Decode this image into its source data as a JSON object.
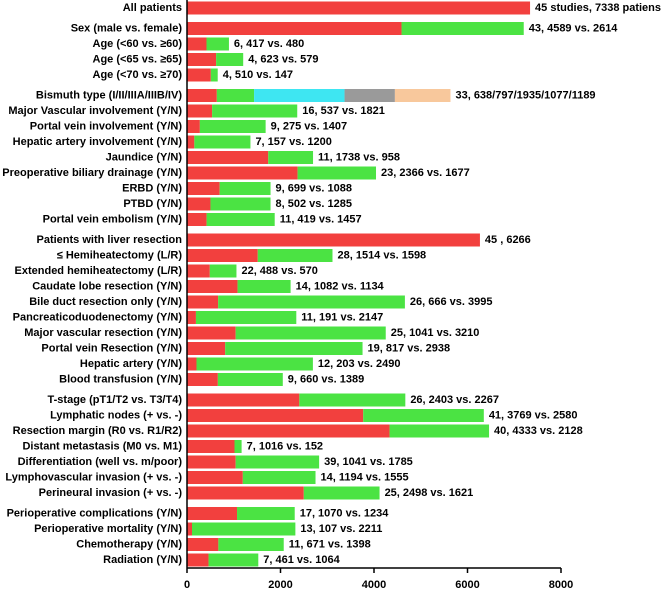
{
  "chart_data": {
    "type": "bar",
    "orientation": "horizontal",
    "stacked": true,
    "categories": [
      "All patients",
      "Sex (male vs. female)",
      "Age (<60 vs. ≥60)",
      "Age (<65 vs. ≥65)",
      "Age (<70 vs. ≥70)",
      "Bismuth type (I/II/IIIA/IIIB/IV)",
      "Major Vascular involvement (Y/N)",
      "Portal vein involvement (Y/N)",
      "Hepatic artery involvement (Y/N)",
      "Jaundice (Y/N)",
      "Preoperative biliary drainage (Y/N)",
      "ERBD (Y/N)",
      "PTBD (Y/N)",
      "Portal vein embolism (Y/N)",
      "Patients with liver resection",
      "≤ Hemiheatectomy (L/R)",
      "Extended hemiheatectomy (L/R)",
      "Caudate lobe resection (Y/N)",
      "Bile duct resection only (Y/N)",
      "Pancreaticoduodenectomy (Y/N)",
      "Major vascular resection (Y/N)",
      "Portal vein Resection (Y/N)",
      "Hepatic artery (Y/N)",
      "Blood transfusion (Y/N)",
      "T-stage (pT1/T2 vs. T3/T4)",
      "Lymphatic nodes (+ vs. -)",
      "Resection margin (R0 vs. R1/R2)",
      "Distant metastasis (M0 vs. M1)",
      "Differentiation (well vs. m/poor)",
      "Lymphovascular invasion (+ vs. -)",
      "Perineural invasion (+ vs. -)",
      "Perioperative complications (Y/N)",
      "Perioperative mortality (Y/N)",
      "Chemotherapy (Y/N)",
      "Radiation (Y/N)"
    ],
    "annotations": [
      "45 studies, 7338 patiens",
      "43, 4589 vs. 2614",
      "6, 417 vs. 480",
      "4, 623 vs. 579",
      "4, 510 vs. 147",
      "33, 638/797/1935/1077/1189",
      "16, 537 vs. 1821",
      "9, 275 vs. 1407",
      "7, 157 vs. 1200",
      "11, 1738 vs. 958",
      "23, 2366 vs. 1677",
      "9, 699 vs. 1088",
      "8, 502 vs. 1285",
      "11, 419 vs. 1457",
      "45 , 6266",
      "28, 1514 vs. 1598",
      "22, 488 vs. 570",
      "14, 1082 vs. 1134",
      "26, 666 vs. 3995",
      "11, 191 vs. 2147",
      "25, 1041 vs. 3210",
      "19, 817 vs. 2938",
      "12, 203 vs. 2490",
      "9, 660 vs. 1389",
      "26, 2403 vs. 2267",
      "41, 3769 vs. 2580",
      "40, 4333 vs. 2128",
      "7, 1016 vs. 152",
      "39, 1041 vs. 1785",
      "14, 1194 vs. 1555",
      "25, 2498 vs. 1621",
      "17, 1070 vs. 1234",
      "13, 107 vs. 2211",
      "11, 671 vs. 1398",
      "7, 461 vs. 1064"
    ],
    "series": [
      {
        "color": "#f2403e",
        "values": [
          7338,
          4589,
          417,
          623,
          510,
          638,
          537,
          275,
          157,
          1738,
          2366,
          699,
          502,
          419,
          6266,
          1514,
          488,
          1082,
          666,
          191,
          1041,
          817,
          203,
          660,
          2403,
          3769,
          4333,
          1016,
          1041,
          1194,
          2498,
          1070,
          107,
          671,
          461
        ]
      },
      {
        "color": "#4be343",
        "values": [
          null,
          2614,
          480,
          579,
          147,
          797,
          1821,
          1407,
          1200,
          958,
          1677,
          1088,
          1285,
          1457,
          null,
          1598,
          570,
          1134,
          3995,
          2147,
          3210,
          2938,
          2490,
          1389,
          2267,
          2580,
          2128,
          152,
          1785,
          1555,
          1621,
          1234,
          2211,
          1398,
          1064
        ]
      },
      {
        "color": "#3ee6f2",
        "values": [
          null,
          null,
          null,
          null,
          null,
          1935,
          null,
          null,
          null,
          null,
          null,
          null,
          null,
          null,
          null,
          null,
          null,
          null,
          null,
          null,
          null,
          null,
          null,
          null,
          null,
          null,
          null,
          null,
          null,
          null,
          null,
          null,
          null,
          null,
          null
        ]
      },
      {
        "color": "#9a9a9a",
        "values": [
          null,
          null,
          null,
          null,
          null,
          1077,
          null,
          null,
          null,
          null,
          null,
          null,
          null,
          null,
          null,
          null,
          null,
          null,
          null,
          null,
          null,
          null,
          null,
          null,
          null,
          null,
          null,
          null,
          null,
          null,
          null,
          null,
          null,
          null,
          null
        ]
      },
      {
        "color": "#f8c89c",
        "values": [
          null,
          null,
          null,
          null,
          null,
          1189,
          null,
          null,
          null,
          null,
          null,
          null,
          null,
          null,
          null,
          null,
          null,
          null,
          null,
          null,
          null,
          null,
          null,
          null,
          null,
          null,
          null,
          null,
          null,
          null,
          null,
          null,
          null,
          null,
          null
        ]
      }
    ],
    "xlim": [
      0,
      8000
    ],
    "xticks": [
      0,
      2000,
      4000,
      6000,
      8000
    ]
  }
}
